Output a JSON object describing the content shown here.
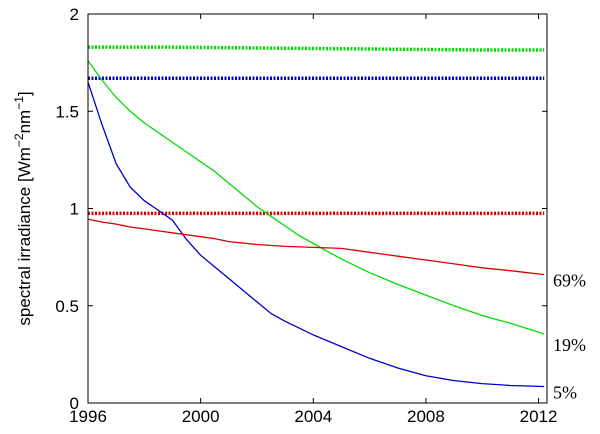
{
  "chart_data": {
    "type": "line",
    "xlabel": "",
    "ylabel": "spectral irradiance [Wm",
    "ylabel_exp1": "−2",
    "ylabel_mid": "nm",
    "ylabel_exp2": "−1",
    "ylabel_end": "]",
    "xlim": [
      1996,
      2012.3
    ],
    "ylim": [
      0,
      2
    ],
    "xticks": [
      1996,
      2000,
      2004,
      2008,
      2012
    ],
    "yticks": [
      0,
      0.5,
      1,
      1.5,
      2
    ],
    "ytick_labels": [
      "0",
      "0.5",
      "1",
      "1.5",
      "2"
    ],
    "grid": false,
    "series": [
      {
        "color": "#00dd00",
        "style": "dots",
        "x": [
          1996.0,
          1998.3,
          1998.7,
          2002,
          2006,
          2010,
          2012.2
        ],
        "y": [
          1.83,
          1.83,
          1.83,
          1.825,
          1.82,
          1.815,
          1.815
        ]
      },
      {
        "color": "#0000cc",
        "style": "dots",
        "x": [
          1996.0,
          1998.3,
          1998.7,
          2002,
          2006,
          2010,
          2012.2
        ],
        "y": [
          1.67,
          1.67,
          1.67,
          1.67,
          1.67,
          1.67,
          1.67
        ]
      },
      {
        "color": "#dd0000",
        "style": "dots",
        "x": [
          1996.0,
          1998.3,
          1998.7,
          2002,
          2006,
          2010,
          2012.2
        ],
        "y": [
          0.975,
          0.975,
          0.975,
          0.975,
          0.975,
          0.975,
          0.975
        ]
      },
      {
        "color": "#00dd00",
        "style": "line",
        "x": [
          1996.0,
          1996.5,
          1997.0,
          1997.5,
          1998.0,
          1998.5,
          1999.0,
          1999.5,
          2000.0,
          2000.5,
          2001.0,
          2001.5,
          2002.0,
          2002.5,
          2003.0,
          2003.5,
          2004.0,
          2005.0,
          2006.0,
          2007.0,
          2008.0,
          2009.0,
          2010.0,
          2011.0,
          2012.2
        ],
        "y": [
          1.76,
          1.66,
          1.57,
          1.5,
          1.44,
          1.39,
          1.34,
          1.29,
          1.24,
          1.19,
          1.13,
          1.07,
          1.01,
          0.96,
          0.91,
          0.86,
          0.82,
          0.74,
          0.67,
          0.61,
          0.555,
          0.5,
          0.45,
          0.41,
          0.355
        ]
      },
      {
        "color": "#0000cc",
        "style": "line",
        "x": [
          1996.0,
          1996.5,
          1997.0,
          1997.5,
          1998.0,
          1998.5,
          1999.0,
          1999.5,
          2000.0,
          2000.5,
          2001.0,
          2001.5,
          2002.0,
          2002.5,
          2003.0,
          2003.5,
          2004.0,
          2005.0,
          2006.0,
          2007.0,
          2008.0,
          2009.0,
          2010.0,
          2011.0,
          2012.2
        ],
        "y": [
          1.65,
          1.43,
          1.23,
          1.11,
          1.04,
          0.99,
          0.94,
          0.84,
          0.76,
          0.7,
          0.64,
          0.58,
          0.52,
          0.46,
          0.42,
          0.385,
          0.35,
          0.29,
          0.23,
          0.18,
          0.14,
          0.115,
          0.1,
          0.09,
          0.085
        ]
      },
      {
        "color": "#dd0000",
        "style": "line",
        "x": [
          1996.0,
          1996.5,
          1997.0,
          1997.5,
          1998.0,
          1998.5,
          1999.0,
          1999.5,
          2000.0,
          2000.5,
          2001.0,
          2002.0,
          2003.0,
          2004.0,
          2005.0,
          2006.0,
          2007.0,
          2008.0,
          2009.0,
          2010.0,
          2011.0,
          2012.2
        ],
        "y": [
          0.945,
          0.93,
          0.92,
          0.905,
          0.895,
          0.885,
          0.875,
          0.865,
          0.855,
          0.845,
          0.83,
          0.815,
          0.805,
          0.8,
          0.795,
          0.775,
          0.755,
          0.735,
          0.715,
          0.695,
          0.68,
          0.66
        ]
      }
    ],
    "end_labels": [
      {
        "text": "69%",
        "y": 0.66
      },
      {
        "text": "19%",
        "y": 0.33
      },
      {
        "text": "5%",
        "y": 0.085
      }
    ]
  }
}
